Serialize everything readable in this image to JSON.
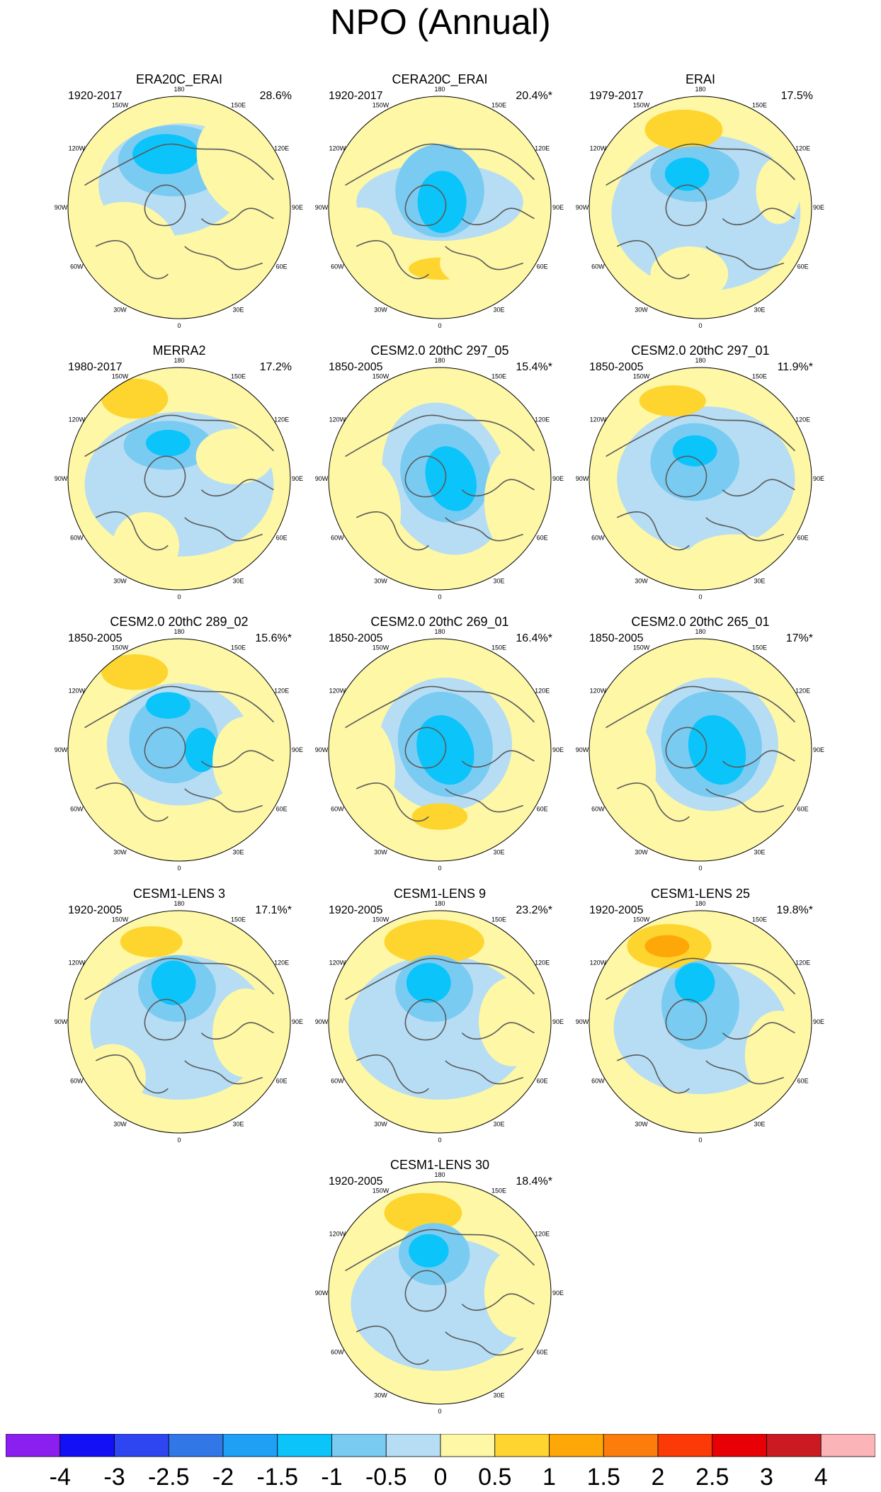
{
  "title": "NPO (Annual)",
  "colors": {
    "land_outline": "#5a5a5a",
    "frame": "#000000",
    "palette": [
      "#8a1fef",
      "#1210f5",
      "#2d46f2",
      "#3177e8",
      "#1fa0f5",
      "#0bc4fa",
      "#7acbf2",
      "#b6ddf3",
      "#fdf7a6",
      "#fed52e",
      "#fea709",
      "#fd7d0c",
      "#fb3a08",
      "#e70006",
      "#cc1a22",
      "#fbb4b8"
    ]
  },
  "chart_data": {
    "type": "contour-map",
    "projection": "north-polar-stereographic",
    "longitude_labels": [
      "180",
      "150E",
      "120E",
      "90E",
      "60E",
      "30E",
      "0",
      "30W",
      "60W",
      "90W",
      "120W",
      "150W"
    ],
    "colorbar_levels": [
      "-4",
      "-3",
      "-2.5",
      "-2",
      "-1.5",
      "-1",
      "-0.5",
      "0",
      "0.5",
      "1",
      "1.5",
      "2",
      "2.5",
      "3",
      "4"
    ],
    "panels": [
      {
        "name": "ERA20C_ERAI",
        "period": "1920-2017",
        "variance": "28.6%"
      },
      {
        "name": "CERA20C_ERAI",
        "period": "1920-2017",
        "variance": "20.4%*"
      },
      {
        "name": "ERAI",
        "period": "1979-2017",
        "variance": "17.5%"
      },
      {
        "name": "MERRA2",
        "period": "1980-2017",
        "variance": "17.2%"
      },
      {
        "name": "CESM2.0 20thC 297_05",
        "period": "1850-2005",
        "variance": "15.4%*"
      },
      {
        "name": "CESM2.0 20thC 297_01",
        "period": "1850-2005",
        "variance": "11.9%*"
      },
      {
        "name": "CESM2.0 20thC 289_02",
        "period": "1850-2005",
        "variance": "15.6%*"
      },
      {
        "name": "CESM2.0 20thC 269_01",
        "period": "1850-2005",
        "variance": "16.4%*"
      },
      {
        "name": "CESM2.0 20thC 265_01",
        "period": "1850-2005",
        "variance": "17%*"
      },
      {
        "name": "CESM1-LENS 3",
        "period": "1920-2005",
        "variance": "17.1%*"
      },
      {
        "name": "CESM1-LENS 9",
        "period": "1920-2005",
        "variance": "23.2%*"
      },
      {
        "name": "CESM1-LENS 25",
        "period": "1920-2005",
        "variance": "19.8%*"
      },
      {
        "name": "CESM1-LENS 30",
        "period": "1920-2005",
        "variance": "18.4%*"
      }
    ]
  }
}
